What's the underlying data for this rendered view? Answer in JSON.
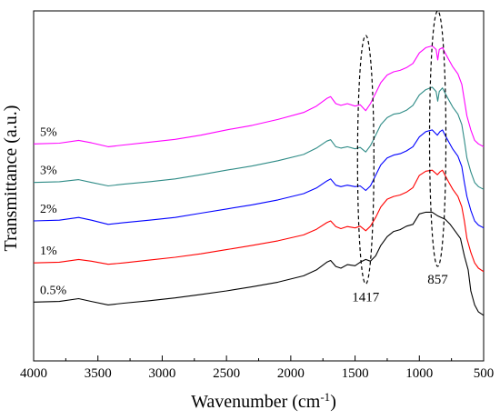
{
  "chart_data": {
    "type": "line",
    "xlabel": "Wavenumber (cm",
    "xlabel_sup": "-1",
    "xlabel_end": ")",
    "ylabel": "Transmittance (a.u.)",
    "xlim": [
      4000,
      500
    ],
    "x_reversed": true,
    "ylim": [
      0,
      1
    ],
    "grid": false,
    "legend": "none",
    "x_ticks": [
      "4000",
      "3500",
      "3000",
      "2500",
      "2000",
      "1500",
      "1000",
      "500"
    ],
    "series": [
      {
        "name": "0.5%",
        "color": "#000000",
        "points": [
          [
            4000,
            0.168
          ],
          [
            3800,
            0.17
          ],
          [
            3650,
            0.178
          ],
          [
            3550,
            0.17
          ],
          [
            3420,
            0.16
          ],
          [
            3300,
            0.165
          ],
          [
            3100,
            0.172
          ],
          [
            2900,
            0.18
          ],
          [
            2700,
            0.19
          ],
          [
            2500,
            0.2
          ],
          [
            2300,
            0.212
          ],
          [
            2100,
            0.225
          ],
          [
            1900,
            0.243
          ],
          [
            1800,
            0.26
          ],
          [
            1720,
            0.282
          ],
          [
            1690,
            0.287
          ],
          [
            1650,
            0.27
          ],
          [
            1610,
            0.265
          ],
          [
            1560,
            0.275
          ],
          [
            1500,
            0.272
          ],
          [
            1460,
            0.282
          ],
          [
            1417,
            0.29
          ],
          [
            1380,
            0.285
          ],
          [
            1340,
            0.3
          ],
          [
            1300,
            0.33
          ],
          [
            1250,
            0.355
          ],
          [
            1200,
            0.37
          ],
          [
            1150,
            0.375
          ],
          [
            1100,
            0.385
          ],
          [
            1050,
            0.39
          ],
          [
            1000,
            0.42
          ],
          [
            950,
            0.425
          ],
          [
            900,
            0.425
          ],
          [
            860,
            0.415
          ],
          [
            830,
            0.41
          ],
          [
            800,
            0.405
          ],
          [
            760,
            0.39
          ],
          [
            720,
            0.37
          ],
          [
            680,
            0.35
          ],
          [
            650,
            0.3
          ],
          [
            620,
            0.26
          ],
          [
            600,
            0.2
          ],
          [
            570,
            0.16
          ],
          [
            540,
            0.14
          ],
          [
            500,
            0.13
          ]
        ]
      },
      {
        "name": "1%",
        "color": "#ff0000",
        "points": [
          [
            4000,
            0.28
          ],
          [
            3800,
            0.282
          ],
          [
            3650,
            0.29
          ],
          [
            3550,
            0.285
          ],
          [
            3420,
            0.276
          ],
          [
            3300,
            0.28
          ],
          [
            3100,
            0.288
          ],
          [
            2900,
            0.296
          ],
          [
            2700,
            0.306
          ],
          [
            2500,
            0.318
          ],
          [
            2300,
            0.33
          ],
          [
            2100,
            0.343
          ],
          [
            1900,
            0.36
          ],
          [
            1800,
            0.376
          ],
          [
            1720,
            0.395
          ],
          [
            1690,
            0.4
          ],
          [
            1650,
            0.384
          ],
          [
            1610,
            0.378
          ],
          [
            1560,
            0.384
          ],
          [
            1500,
            0.38
          ],
          [
            1460,
            0.385
          ],
          [
            1417,
            0.372
          ],
          [
            1380,
            0.385
          ],
          [
            1340,
            0.41
          ],
          [
            1300,
            0.44
          ],
          [
            1250,
            0.462
          ],
          [
            1200,
            0.47
          ],
          [
            1150,
            0.474
          ],
          [
            1100,
            0.482
          ],
          [
            1050,
            0.495
          ],
          [
            1000,
            0.53
          ],
          [
            950,
            0.542
          ],
          [
            900,
            0.545
          ],
          [
            860,
            0.532
          ],
          [
            840,
            0.54
          ],
          [
            820,
            0.545
          ],
          [
            800,
            0.53
          ],
          [
            770,
            0.51
          ],
          [
            740,
            0.49
          ],
          [
            700,
            0.47
          ],
          [
            670,
            0.44
          ],
          [
            650,
            0.4
          ],
          [
            630,
            0.35
          ],
          [
            600,
            0.31
          ],
          [
            570,
            0.28
          ],
          [
            540,
            0.265
          ],
          [
            500,
            0.255
          ]
        ]
      },
      {
        "name": "2%",
        "color": "#0000ff",
        "points": [
          [
            4000,
            0.4
          ],
          [
            3800,
            0.402
          ],
          [
            3650,
            0.41
          ],
          [
            3550,
            0.402
          ],
          [
            3420,
            0.39
          ],
          [
            3300,
            0.395
          ],
          [
            3100,
            0.402
          ],
          [
            2900,
            0.41
          ],
          [
            2700,
            0.422
          ],
          [
            2500,
            0.434
          ],
          [
            2300,
            0.446
          ],
          [
            2100,
            0.46
          ],
          [
            1900,
            0.478
          ],
          [
            1800,
            0.494
          ],
          [
            1720,
            0.514
          ],
          [
            1690,
            0.52
          ],
          [
            1650,
            0.502
          ],
          [
            1610,
            0.498
          ],
          [
            1560,
            0.502
          ],
          [
            1500,
            0.498
          ],
          [
            1460,
            0.5
          ],
          [
            1417,
            0.487
          ],
          [
            1380,
            0.5
          ],
          [
            1340,
            0.53
          ],
          [
            1300,
            0.56
          ],
          [
            1250,
            0.58
          ],
          [
            1200,
            0.588
          ],
          [
            1150,
            0.592
          ],
          [
            1100,
            0.6
          ],
          [
            1050,
            0.612
          ],
          [
            1000,
            0.64
          ],
          [
            950,
            0.655
          ],
          [
            900,
            0.66
          ],
          [
            860,
            0.645
          ],
          [
            840,
            0.655
          ],
          [
            820,
            0.66
          ],
          [
            800,
            0.645
          ],
          [
            770,
            0.625
          ],
          [
            740,
            0.605
          ],
          [
            700,
            0.585
          ],
          [
            670,
            0.555
          ],
          [
            650,
            0.51
          ],
          [
            630,
            0.47
          ],
          [
            600,
            0.43
          ],
          [
            570,
            0.4
          ],
          [
            540,
            0.388
          ],
          [
            500,
            0.38
          ]
        ]
      },
      {
        "name": "3%",
        "color": "#2e8b86",
        "points": [
          [
            4000,
            0.51
          ],
          [
            3800,
            0.512
          ],
          [
            3650,
            0.518
          ],
          [
            3550,
            0.51
          ],
          [
            3420,
            0.5
          ],
          [
            3300,
            0.505
          ],
          [
            3100,
            0.512
          ],
          [
            2900,
            0.52
          ],
          [
            2700,
            0.532
          ],
          [
            2500,
            0.545
          ],
          [
            2300,
            0.557
          ],
          [
            2100,
            0.572
          ],
          [
            1900,
            0.59
          ],
          [
            1800,
            0.608
          ],
          [
            1720,
            0.628
          ],
          [
            1690,
            0.632
          ],
          [
            1650,
            0.612
          ],
          [
            1610,
            0.608
          ],
          [
            1560,
            0.612
          ],
          [
            1500,
            0.606
          ],
          [
            1460,
            0.61
          ],
          [
            1417,
            0.597
          ],
          [
            1380,
            0.615
          ],
          [
            1340,
            0.645
          ],
          [
            1300,
            0.675
          ],
          [
            1250,
            0.695
          ],
          [
            1200,
            0.705
          ],
          [
            1150,
            0.708
          ],
          [
            1100,
            0.716
          ],
          [
            1050,
            0.73
          ],
          [
            1000,
            0.76
          ],
          [
            950,
            0.775
          ],
          [
            900,
            0.782
          ],
          [
            870,
            0.77
          ],
          [
            857,
            0.742
          ],
          [
            845,
            0.77
          ],
          [
            820,
            0.78
          ],
          [
            800,
            0.765
          ],
          [
            770,
            0.745
          ],
          [
            740,
            0.725
          ],
          [
            700,
            0.705
          ],
          [
            670,
            0.675
          ],
          [
            650,
            0.63
          ],
          [
            630,
            0.58
          ],
          [
            600,
            0.54
          ],
          [
            570,
            0.51
          ],
          [
            540,
            0.498
          ],
          [
            500,
            0.49
          ]
        ]
      },
      {
        "name": "5%",
        "color": "#ff00ff",
        "points": [
          [
            4000,
            0.62
          ],
          [
            3800,
            0.622
          ],
          [
            3650,
            0.63
          ],
          [
            3550,
            0.623
          ],
          [
            3420,
            0.612
          ],
          [
            3300,
            0.617
          ],
          [
            3100,
            0.625
          ],
          [
            2900,
            0.633
          ],
          [
            2700,
            0.645
          ],
          [
            2500,
            0.66
          ],
          [
            2300,
            0.673
          ],
          [
            2100,
            0.69
          ],
          [
            1900,
            0.71
          ],
          [
            1800,
            0.728
          ],
          [
            1720,
            0.75
          ],
          [
            1690,
            0.755
          ],
          [
            1650,
            0.735
          ],
          [
            1610,
            0.73
          ],
          [
            1560,
            0.735
          ],
          [
            1500,
            0.728
          ],
          [
            1460,
            0.732
          ],
          [
            1417,
            0.715
          ],
          [
            1380,
            0.735
          ],
          [
            1340,
            0.765
          ],
          [
            1300,
            0.795
          ],
          [
            1250,
            0.817
          ],
          [
            1200,
            0.826
          ],
          [
            1150,
            0.83
          ],
          [
            1100,
            0.838
          ],
          [
            1050,
            0.85
          ],
          [
            1000,
            0.88
          ],
          [
            950,
            0.895
          ],
          [
            900,
            0.9
          ],
          [
            870,
            0.89
          ],
          [
            857,
            0.86
          ],
          [
            845,
            0.89
          ],
          [
            820,
            0.895
          ],
          [
            800,
            0.88
          ],
          [
            770,
            0.86
          ],
          [
            740,
            0.84
          ],
          [
            700,
            0.82
          ],
          [
            670,
            0.79
          ],
          [
            650,
            0.745
          ],
          [
            630,
            0.7
          ],
          [
            600,
            0.66
          ],
          [
            570,
            0.63
          ],
          [
            540,
            0.62
          ],
          [
            500,
            0.612
          ]
        ]
      }
    ],
    "annotations": [
      {
        "label": "1417",
        "x": 1417,
        "y_low": 0.22,
        "y_high": 0.93
      },
      {
        "label": "857",
        "x": 857,
        "y_low": 0.27,
        "y_high": 1.0
      }
    ]
  }
}
